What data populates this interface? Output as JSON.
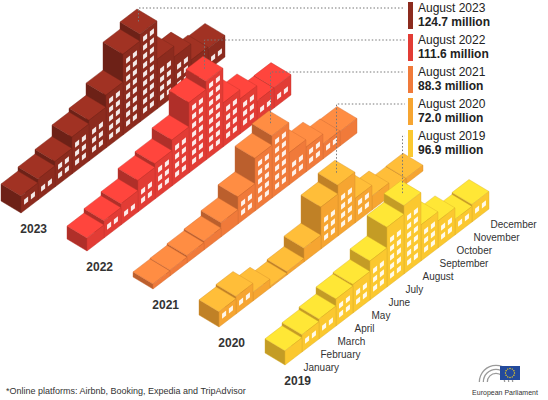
{
  "chart_data": {
    "type": "bar",
    "categories": [
      "January",
      "February",
      "March",
      "April",
      "May",
      "June",
      "July",
      "August",
      "September",
      "October",
      "November",
      "December"
    ],
    "series": [
      {
        "name": "2019",
        "color": "#fbc82f",
        "callout": "August 2019",
        "values": [
          20.1,
          24.5,
          28.3,
          38.2,
          40.5,
          55.3,
          84.6,
          96.9,
          51.2,
          38.4,
          22.1,
          24.8
        ],
        "value_labels": [
          null,
          null,
          null,
          null,
          null,
          null,
          null,
          "96.9 million",
          null,
          null,
          null,
          null
        ]
      },
      {
        "name": "2020",
        "color": "#f6a531",
        "callout": "August 2020",
        "values": [
          21.5,
          24.8,
          12.3,
          2.1,
          4.8,
          19.6,
          59.4,
          72.0,
          34.7,
          19.8,
          7.6,
          8.2
        ],
        "value_labels": [
          null,
          null,
          null,
          null,
          null,
          null,
          null,
          "72.0 million",
          null,
          null,
          null,
          null
        ]
      },
      {
        "name": "2021",
        "color": "#f07a3a",
        "callout": "August 2021",
        "values": [
          7.2,
          8.1,
          10.4,
          12.6,
          20.3,
          38.5,
          74.8,
          88.3,
          45.6,
          35.2,
          21.4,
          20.6
        ],
        "value_labels": [
          null,
          null,
          null,
          null,
          null,
          null,
          null,
          "88.3 million",
          null,
          null,
          null,
          null
        ]
      },
      {
        "name": "2022",
        "color": "#e23c35",
        "callout": "August 2022",
        "values": [
          18.4,
          24.6,
          30.2,
          44.8,
          50.1,
          65.3,
          99.8,
          111.6,
          62.4,
          49.7,
          28.3,
          28.9
        ],
        "value_labels": [
          null,
          null,
          null,
          null,
          null,
          null,
          null,
          "111.6 million",
          null,
          null,
          null,
          null
        ]
      },
      {
        "name": "2023",
        "color": "#8c2b1e",
        "callout": "August 2023",
        "values": [
          24.1,
          29.8,
          36.2,
          52.4,
          57.6,
          74.9,
          114.5,
          124.7,
          70.3,
          55.1,
          32.4,
          30.6
        ],
        "value_labels": [
          null,
          null,
          null,
          null,
          null,
          null,
          null,
          "124.7 million",
          null,
          null,
          null,
          null
        ]
      }
    ],
    "tick_labels": "x",
    "footnote": "*Online platforms: Airbnb, Booking, Expedia and TripAdvisor",
    "source": "European Parliament"
  }
}
